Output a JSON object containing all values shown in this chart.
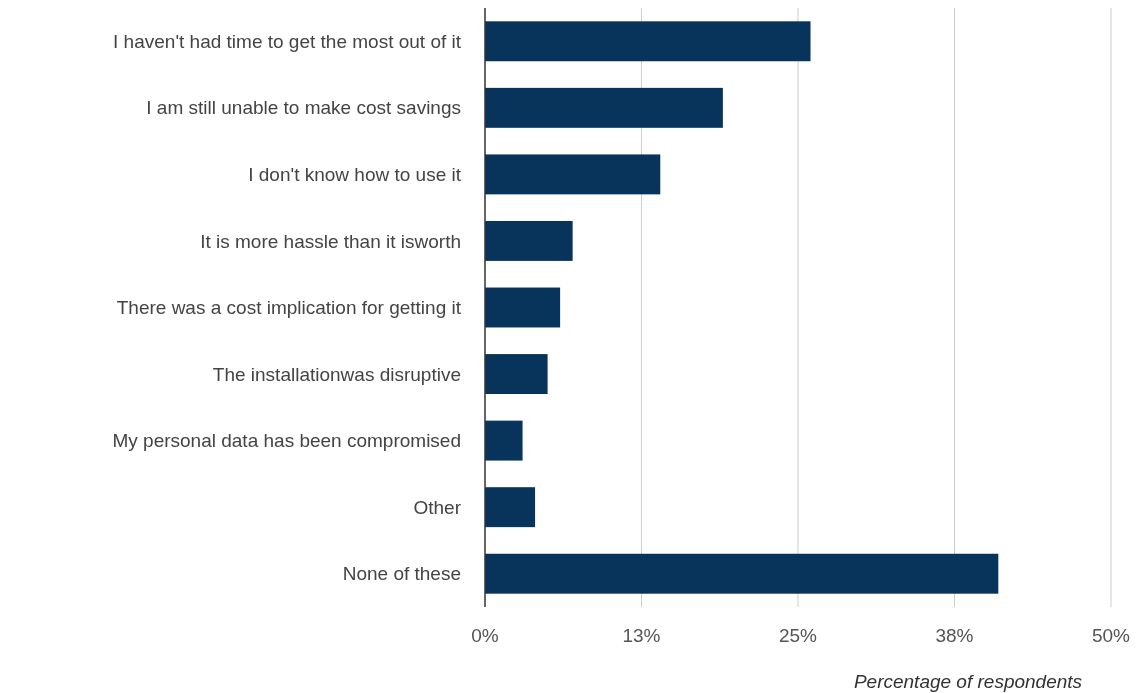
{
  "chart_data": {
    "type": "bar",
    "orientation": "horizontal",
    "xlabel": "Percentage of respondents",
    "categories": [
      "I haven't had time to get the most out of it",
      "I am still unable to make cost savings",
      "I don't know how to use it",
      "It is more hassle than it isworth",
      "There was a cost implication for getting it",
      "The installationwas disruptive",
      "My personal data has been compromised",
      "Other",
      "None of these"
    ],
    "values": [
      26,
      19,
      14,
      7,
      6,
      5,
      3,
      4,
      41
    ],
    "color": "#08345c",
    "xlim": [
      0,
      50
    ],
    "xticks": [
      {
        "value": 0,
        "label": "0%"
      },
      {
        "value": 12.5,
        "label": "13%"
      },
      {
        "value": 25,
        "label": "25%"
      },
      {
        "value": 37.5,
        "label": "38%"
      },
      {
        "value": 50,
        "label": "50%"
      }
    ],
    "grid": "x"
  }
}
